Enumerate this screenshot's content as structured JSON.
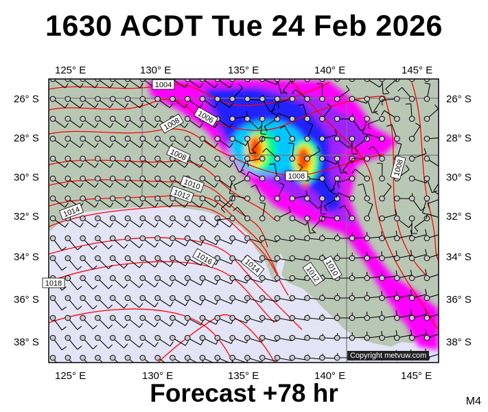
{
  "title": "1630 ACDT Tue 24 Feb 2026",
  "footer": "Forecast +78 hr",
  "model_tag": "M4",
  "copyright": "Copyright metvuw.com",
  "axes": {
    "lon_labels": [
      "125° E",
      "130° E",
      "135° E",
      "140° E",
      "145° E"
    ],
    "lat_labels": [
      "26° S",
      "28° S",
      "30° S",
      "32° S",
      "34° S",
      "36° S",
      "38° S"
    ]
  },
  "isobar_labels": [
    "1004",
    "1006",
    "1008",
    "1008",
    "1010",
    "1012",
    "1014",
    "1016",
    "1018",
    "1014",
    "1012",
    "1010",
    "1008",
    "1008"
  ],
  "colors": {
    "land": "#b9c8b4",
    "ocean": "#e4e4f7",
    "isobar": "#ff0000",
    "rain_scale": [
      "#ff00ff",
      "#a020ff",
      "#2020ff",
      "#00c8ff",
      "#00ff80",
      "#ffff00",
      "#ff4000"
    ]
  }
}
